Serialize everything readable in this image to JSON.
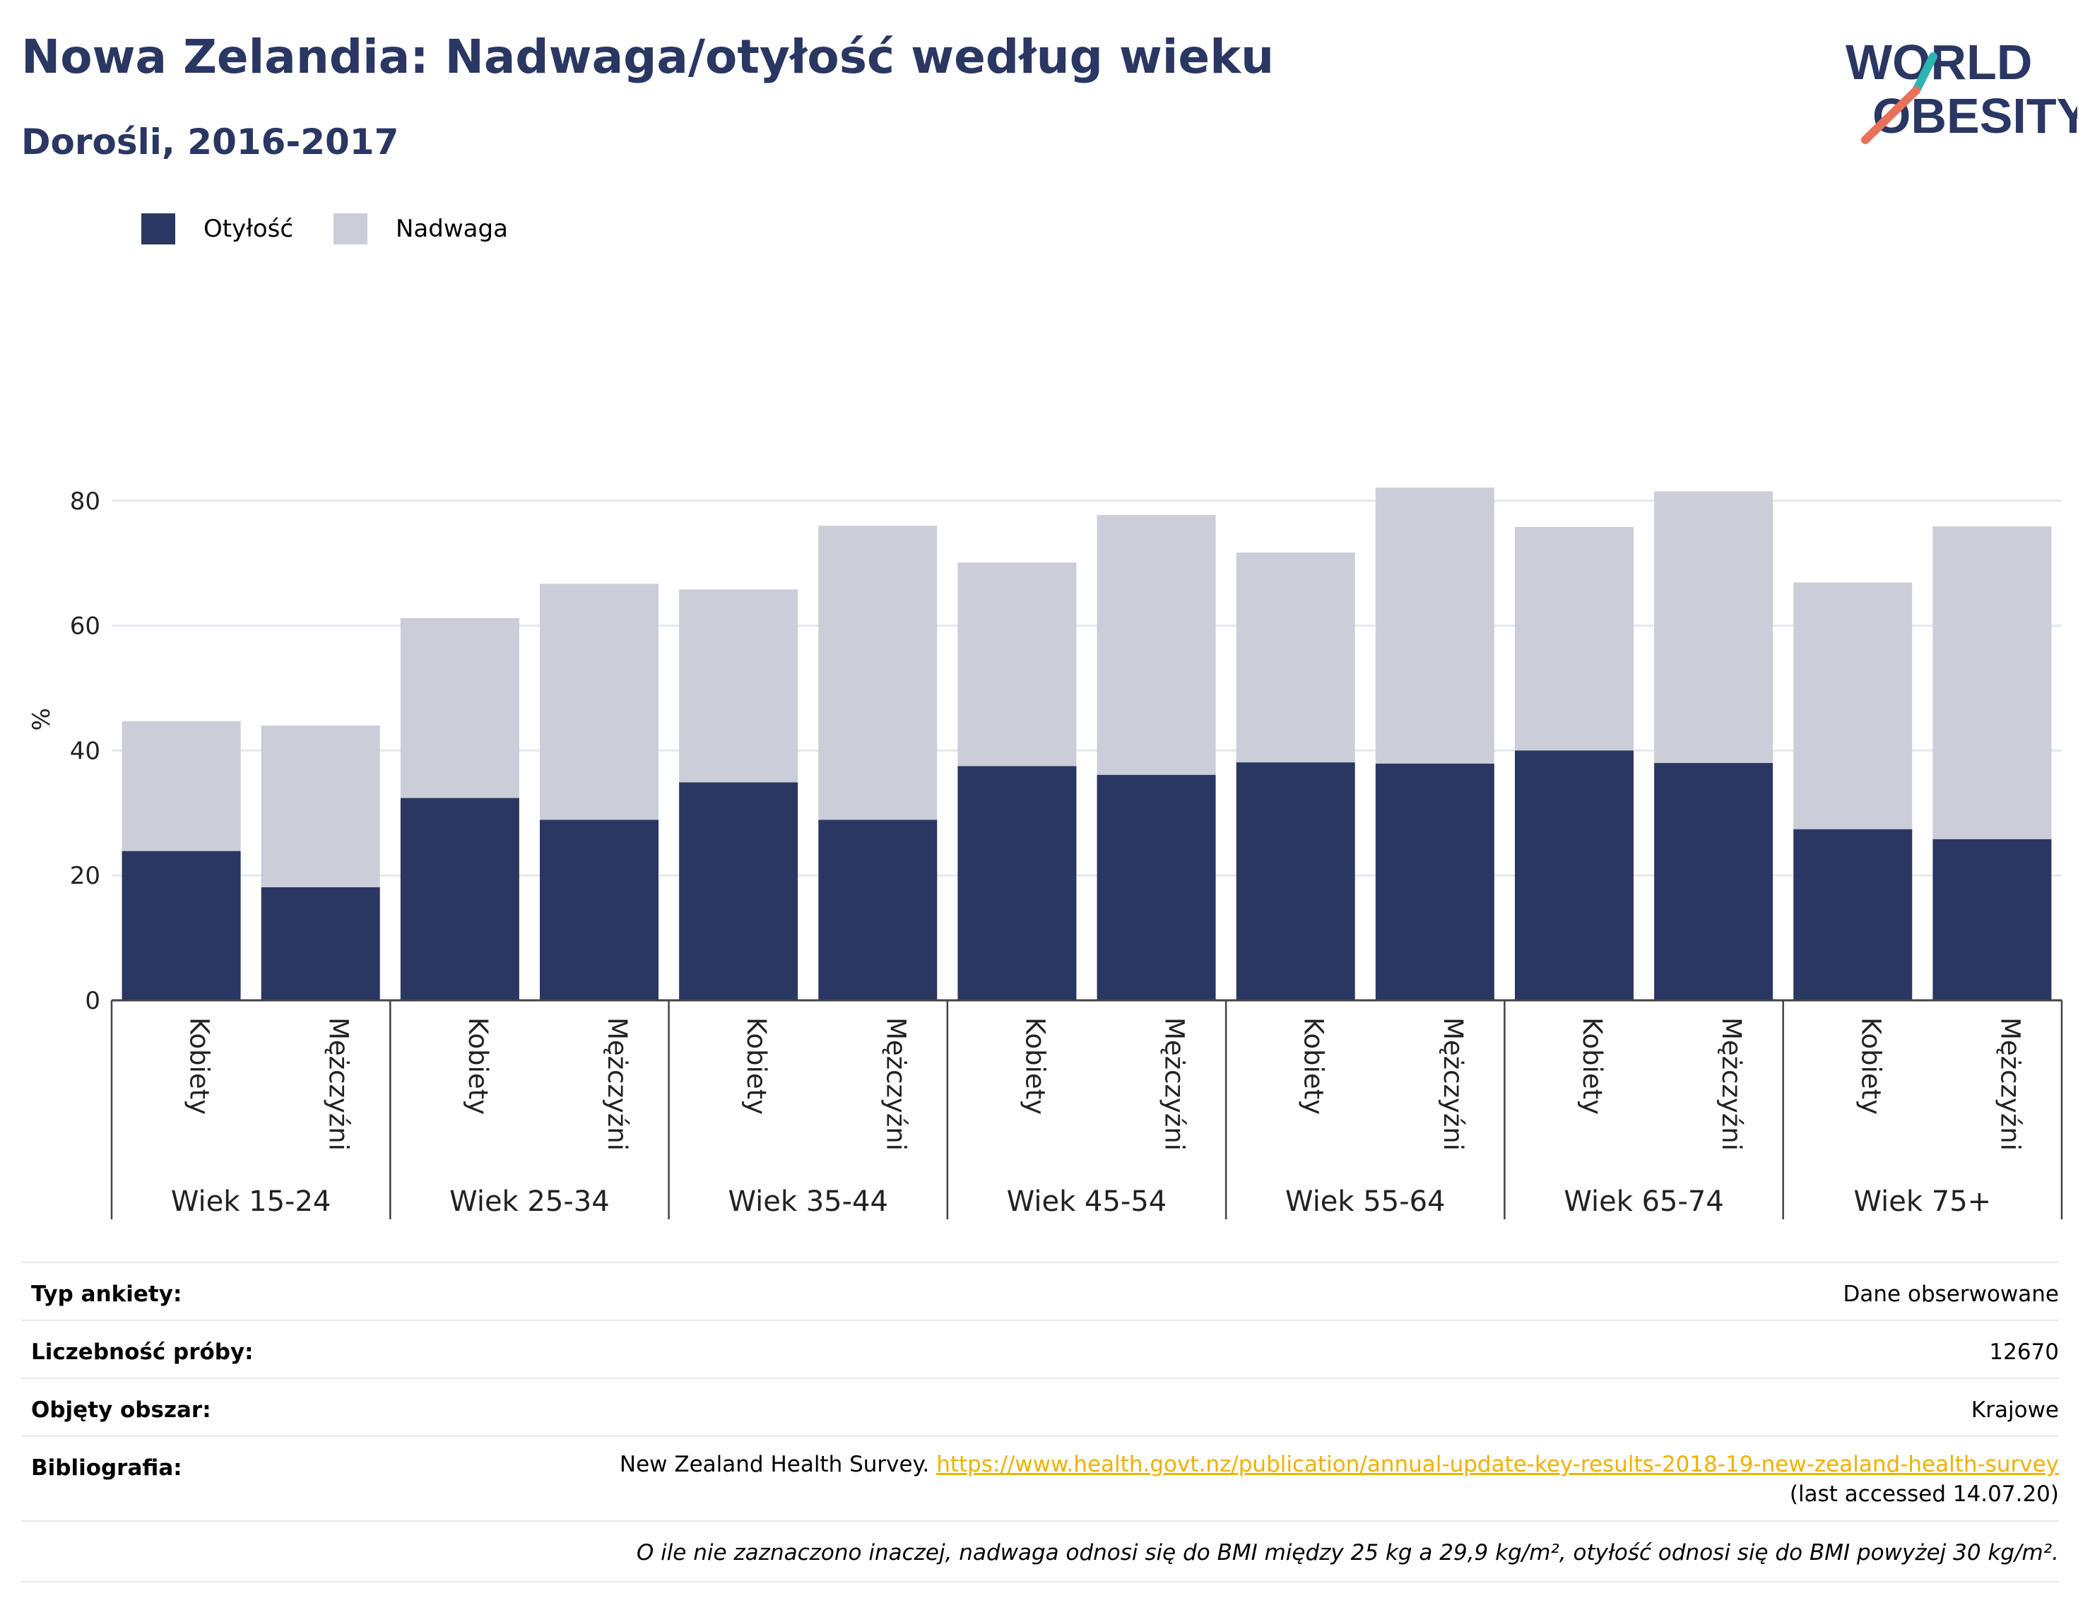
{
  "header": {
    "title": "Nowa Zelandia: Nadwaga/otyłość według wieku",
    "subtitle": "Dorośli, 2016-2017"
  },
  "logo": {
    "line1": "WORLD",
    "line2": "OBESITY"
  },
  "colors": {
    "obesity": "#2a3763",
    "overweight": "#cbcdd8",
    "text": "#2a3763",
    "link": "#f0b100",
    "grid": "#e6e8ee"
  },
  "legend": {
    "items": [
      {
        "label": "Otyłość"
      },
      {
        "label": "Nadwaga"
      }
    ]
  },
  "chart_data": {
    "type": "bar",
    "stacked": true,
    "ylabel": "%",
    "ylim": [
      0,
      90
    ],
    "yticks": [
      0,
      20,
      40,
      60,
      80
    ],
    "grid": true,
    "legend_position": "top-left",
    "groups": [
      "Wiek 15-24",
      "Wiek 25-34",
      "Wiek 35-44",
      "Wiek 45-54",
      "Wiek 55-64",
      "Wiek 65-74",
      "Wiek 75+"
    ],
    "categories": [
      "Kobiety",
      "Mężczyźni",
      "Kobiety",
      "Mężczyźni",
      "Kobiety",
      "Mężczyźni",
      "Kobiety",
      "Mężczyźni",
      "Kobiety",
      "Mężczyźni",
      "Kobiety",
      "Mężczyźni",
      "Kobiety",
      "Mężczyźni"
    ],
    "series": [
      {
        "name": "Otyłość",
        "values": [
          23.9,
          18.1,
          32.4,
          28.9,
          34.9,
          28.9,
          37.5,
          36.1,
          38.1,
          37.9,
          40.0,
          38.0,
          27.4,
          25.8
        ]
      },
      {
        "name": "Nadwaga",
        "values": [
          20.8,
          25.9,
          28.8,
          37.8,
          30.9,
          47.1,
          32.6,
          41.6,
          33.6,
          44.2,
          35.8,
          43.5,
          39.5,
          50.1
        ]
      }
    ]
  },
  "info": {
    "survey_type": {
      "label": "Typ ankiety:",
      "value": "Dane obserwowane"
    },
    "sample_size": {
      "label": "Liczebność próby:",
      "value": "12670"
    },
    "area": {
      "label": "Objęty obszar:",
      "value": "Krajowe"
    },
    "bibliography": {
      "label": "Bibliografia:",
      "source": "New Zealand Health Survey.",
      "url": "https://www.health.govt.nz/publication/annual-update-key-results-2018-19-new-zealand-health-survey",
      "accessed": "(last accessed 14.07.20)"
    },
    "note": "O ile nie zaznaczono inaczej, nadwaga odnosi się do BMI między 25 kg a 29,9 kg/m², otyłość odnosi się do BMI powyżej 30 kg/m²."
  }
}
